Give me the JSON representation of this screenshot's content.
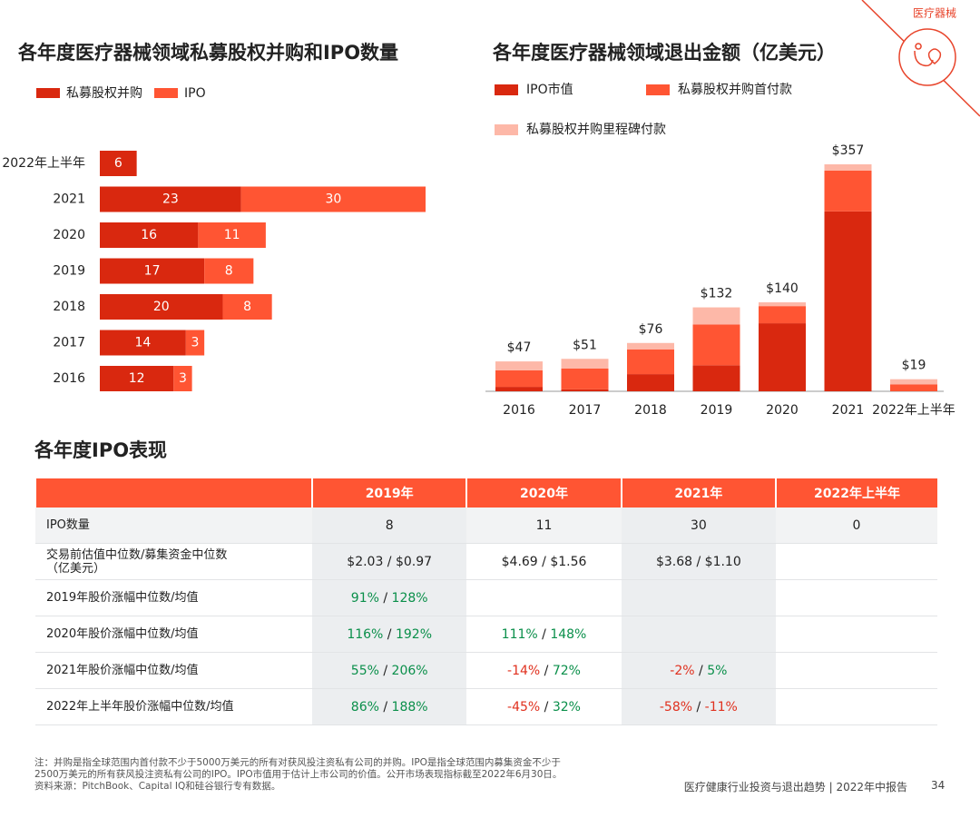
{
  "logo": "医疗器械",
  "chart_data": [
    {
      "type": "barh",
      "stacked": true,
      "title": "各年度医疗器械领域私募股权并购和IPO数量",
      "categories": [
        "2022年上半年",
        "2021",
        "2020",
        "2019",
        "2018",
        "2017",
        "2016"
      ],
      "series": [
        {
          "name": "私募股权并购",
          "color": "#d9280f",
          "values": [
            6,
            23,
            16,
            17,
            20,
            14,
            12
          ]
        },
        {
          "name": "IPO",
          "color": "#ff5533",
          "values": [
            0,
            30,
            11,
            8,
            8,
            3,
            3
          ]
        }
      ]
    },
    {
      "type": "bar",
      "stacked": true,
      "title": "各年度医疗器械领域退出金额（亿美元）",
      "categories": [
        "2016",
        "2017",
        "2018",
        "2019",
        "2020",
        "2021",
        "2022年上半年"
      ],
      "series": [
        {
          "name": "IPO市值",
          "color": "#d9280f",
          "values": [
            7,
            3,
            27,
            41,
            107,
            283,
            0
          ]
        },
        {
          "name": "私募股权并购首付款",
          "color": "#ff5533",
          "values": [
            26,
            33,
            39,
            64,
            27,
            64,
            11
          ]
        },
        {
          "name": "私募股权并购里程碑付款",
          "color": "#fdb8a8",
          "values": [
            14,
            15,
            10,
            27,
            6,
            10,
            8
          ]
        }
      ],
      "total_labels": [
        "$47",
        "$51",
        "$76",
        "$132",
        "$140",
        "$357",
        "$19"
      ]
    }
  ],
  "table": {
    "title": "各年度IPO表现",
    "header": [
      "2019年",
      "2020年",
      "2021年",
      "2022年上半年"
    ],
    "separator": " / ",
    "rows": [
      {
        "label": "IPO数量",
        "cells": [
          "8",
          "11",
          "30",
          "0"
        ]
      },
      {
        "label": "交易前估值中位数/募集资金中位数\n（亿美元）",
        "cells": [
          "$2.03 / $0.97",
          "$4.69 / $1.56",
          "$3.68 / $1.10",
          null
        ]
      },
      {
        "label": "2019年股价涨幅中位数/均值",
        "cells": [
          [
            "91%",
            "128%"
          ],
          null,
          null,
          null
        ]
      },
      {
        "label": "2020年股价涨幅中位数/均值",
        "cells": [
          [
            "116%",
            "192%"
          ],
          [
            "111%",
            "148%"
          ],
          null,
          null
        ]
      },
      {
        "label": "2021年股价涨幅中位数/均值",
        "cells": [
          [
            "55%",
            "206%"
          ],
          [
            "-14%",
            "72%"
          ],
          [
            "-2%",
            "5%"
          ],
          null
        ]
      },
      {
        "label": "2022年上半年股价涨幅中位数/均值",
        "cells": [
          [
            "86%",
            "188%"
          ],
          [
            "-45%",
            "32%"
          ],
          [
            "-58%",
            "-11%"
          ],
          null
        ]
      }
    ]
  },
  "notes": [
    "注：并购是指全球范围内首付款不少于5000万美元的所有对获风投注资私有公司的并购。IPO是指全球范围内募集资金不少于",
    "2500万美元的所有获风投注资私有公司的IPO。IPO市值用于估计上市公司的价值。公开市场表现指标截至2022年6月30日。",
    "资料来源：PitchBook、Capital IQ和硅谷银行专有数据。"
  ],
  "footer": "医疗健康行业投资与退出趋势 | 2022年中报告",
  "page": "34"
}
